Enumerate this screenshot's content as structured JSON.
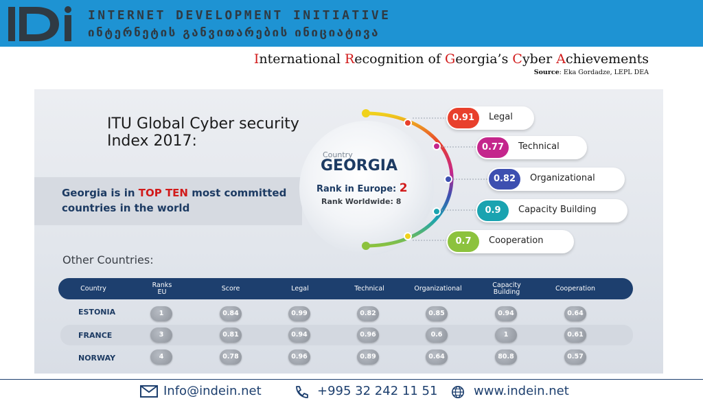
{
  "header": {
    "org_name_en": "INTERNET DEVELOPMENT INITIATIVE",
    "org_name_ka": "ინტერნეტის განვითარების ინიციატივა",
    "logo_text": "IDI",
    "bg_color": "#1e93d3"
  },
  "slide": {
    "title_parts": [
      {
        "cap": "I",
        "rest": "nternational "
      },
      {
        "cap": "R",
        "rest": "ecognition of "
      },
      {
        "cap": "G",
        "rest": "eorgia’s "
      },
      {
        "cap": "C",
        "rest": "yber "
      },
      {
        "cap": "A",
        "rest": "chievements"
      }
    ],
    "source_label": "Source",
    "source_value": ": Eka Gordadze, LEPL DEA"
  },
  "infographic": {
    "heading": "ITU Global Cyber security Index 2017:",
    "banner_prefix": "Georgia is in ",
    "banner_highlight": "TOP TEN",
    "banner_suffix": " most committed countries in the world",
    "globe": {
      "country_label": "Country",
      "country_name": "GEORGIA",
      "rank_europe_label": "Rank in Europe: ",
      "rank_europe_value": "2",
      "rank_world": "Rank Worldwide: 8"
    },
    "pillars": [
      {
        "value": "0.91",
        "label": "Legal",
        "color": "#e8402c"
      },
      {
        "value": "0.77",
        "label": "Technical",
        "color": "#c4268c"
      },
      {
        "value": "0.82",
        "label": "Organizational",
        "color": "#3d4fb0"
      },
      {
        "value": "0.9",
        "label": "Capacity Building",
        "color": "#1aa3b0"
      },
      {
        "value": "0.7",
        "label": "Cooperation",
        "color": "#8cc23d"
      }
    ],
    "other_countries_label": "Other Countries:",
    "table": {
      "headers": [
        "Country",
        "Ranks EU",
        "Score",
        "Legal",
        "Technical",
        "Organizational",
        "Capacity Building",
        "Cooperation"
      ],
      "rows": [
        {
          "country": "ESTONIA",
          "values": [
            "1",
            "0.84",
            "0.99",
            "0.82",
            "0.85",
            "0.94",
            "0.64"
          ]
        },
        {
          "country": "FRANCE",
          "values": [
            "3",
            "0.81",
            "0.94",
            "0.96",
            "0.6",
            "1",
            "0.61"
          ]
        },
        {
          "country": "NORWAY",
          "values": [
            "4",
            "0.78",
            "0.96",
            "0.89",
            "0.64",
            "80.8",
            "0.57"
          ]
        }
      ]
    }
  },
  "footer": {
    "email": "Info@indein.net",
    "phone": "+995 32 242 11 51",
    "website": "www.indein.net"
  }
}
